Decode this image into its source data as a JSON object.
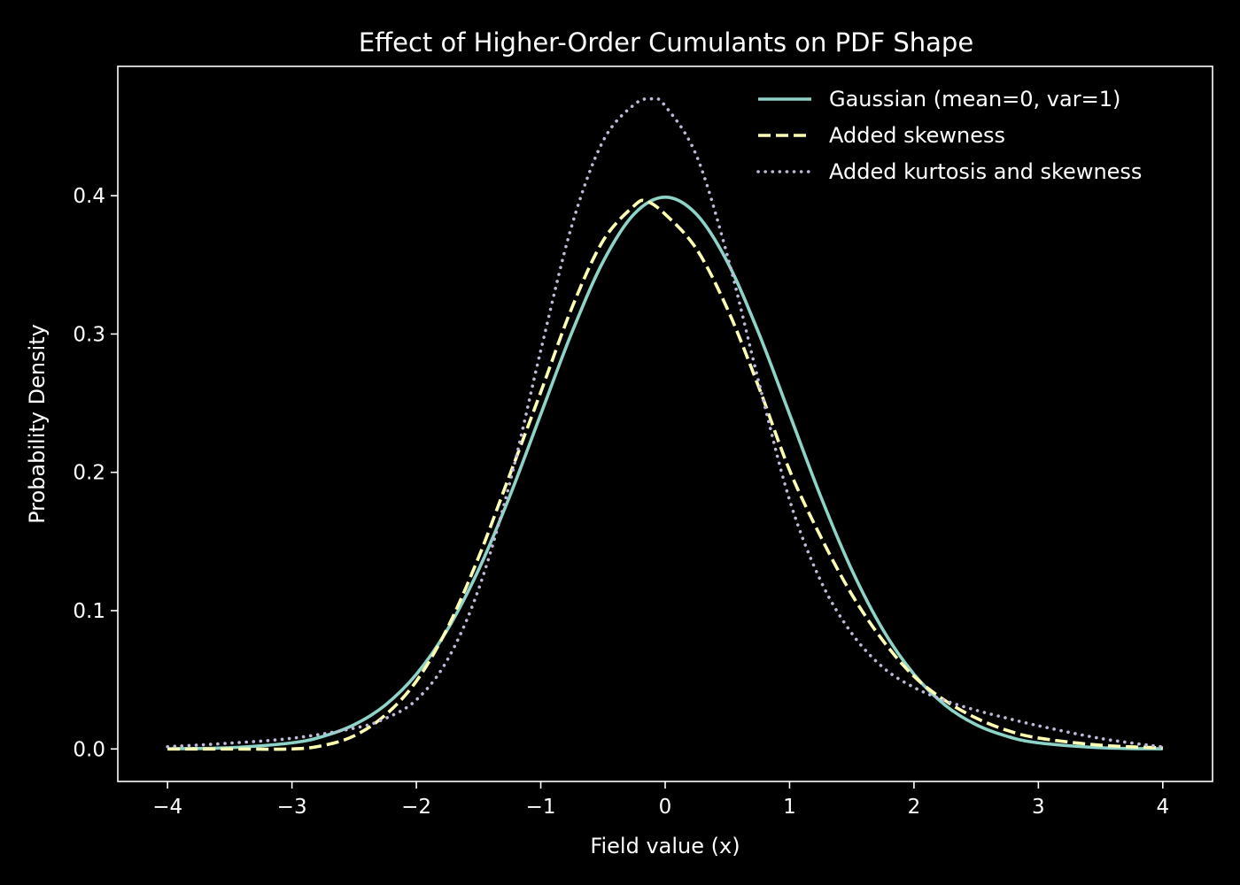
{
  "chart_data": {
    "type": "line",
    "title": "Effect of Higher-Order Cumulants on PDF Shape",
    "xlabel": "Field value (x)",
    "ylabel": "Probability Density",
    "xlim": [
      -4.4,
      4.4
    ],
    "ylim": [
      -0.0235,
      0.4935
    ],
    "xticks": [
      -4,
      -3,
      -2,
      -1,
      0,
      1,
      2,
      3,
      4
    ],
    "xtick_labels": [
      "−4",
      "−3",
      "−2",
      "−1",
      "0",
      "1",
      "2",
      "3",
      "4"
    ],
    "yticks": [
      0.0,
      0.1,
      0.2,
      0.3,
      0.4
    ],
    "ytick_labels": [
      "0.0",
      "0.1",
      "0.2",
      "0.3",
      "0.4"
    ],
    "grid": false,
    "legend_position": "top-right",
    "colors": {
      "background": "#000000",
      "axes": "#ffffff",
      "text": "#ffffff"
    },
    "series": [
      {
        "name": "Gaussian (mean=0, var=1)",
        "color": "#8dd3c7",
        "style": "solid",
        "x": [
          -4,
          -3.5,
          -3,
          -2.75,
          -2.5,
          -2.25,
          -2,
          -1.75,
          -1.5,
          -1.25,
          -1,
          -0.75,
          -0.5,
          -0.25,
          0,
          0.25,
          0.5,
          0.75,
          1,
          1.25,
          1.5,
          1.75,
          2,
          2.25,
          2.5,
          2.75,
          3,
          3.5,
          4
        ],
        "y": [
          0.0001,
          0.0009,
          0.0044,
          0.0091,
          0.0175,
          0.0317,
          0.054,
          0.0863,
          0.1295,
          0.1826,
          0.242,
          0.3011,
          0.3521,
          0.3867,
          0.3989,
          0.3867,
          0.3521,
          0.3011,
          0.242,
          0.1826,
          0.1295,
          0.0863,
          0.054,
          0.0317,
          0.0175,
          0.0091,
          0.0044,
          0.0009,
          0.0001
        ]
      },
      {
        "name": "Added skewness",
        "color": "#ffffb3",
        "style": "dashed",
        "x": [
          -4,
          -3.5,
          -3,
          -2.75,
          -2.5,
          -2.25,
          -2,
          -1.75,
          -1.5,
          -1.25,
          -1,
          -0.75,
          -0.5,
          -0.25,
          -0.15,
          0,
          0.25,
          0.5,
          0.75,
          1,
          1.25,
          1.5,
          1.75,
          2,
          2.25,
          2.5,
          2.75,
          3,
          3.5,
          4
        ],
        "y": [
          0.0,
          0.0,
          0.0,
          0.0025,
          0.0095,
          0.0245,
          0.049,
          0.0875,
          0.1385,
          0.198,
          0.258,
          0.3189,
          0.3673,
          0.3927,
          0.396,
          0.3866,
          0.3617,
          0.3182,
          0.2622,
          0.2015,
          0.1535,
          0.1117,
          0.0784,
          0.0525,
          0.035,
          0.0223,
          0.0134,
          0.0079,
          0.0027,
          0.0008
        ]
      },
      {
        "name": "Added kurtosis and skewness",
        "color": "#bebada",
        "style": "dotted",
        "x": [
          -4,
          -3.5,
          -3,
          -2.5,
          -2.25,
          -2,
          -1.75,
          -1.5,
          -1.25,
          -1,
          -0.75,
          -0.5,
          -0.25,
          -0.1,
          0,
          0.25,
          0.5,
          0.75,
          1,
          1.25,
          1.5,
          1.75,
          2,
          2.25,
          2.5,
          2.75,
          3,
          3.5,
          4
        ],
        "y": [
          0.0016,
          0.0042,
          0.0077,
          0.015,
          0.022,
          0.0355,
          0.0645,
          0.1155,
          0.192,
          0.2881,
          0.3785,
          0.4394,
          0.4658,
          0.47,
          0.4649,
          0.4293,
          0.3567,
          0.2662,
          0.18,
          0.1216,
          0.0836,
          0.059,
          0.0445,
          0.035,
          0.028,
          0.0222,
          0.0168,
          0.0076,
          0.0014
        ]
      }
    ]
  }
}
